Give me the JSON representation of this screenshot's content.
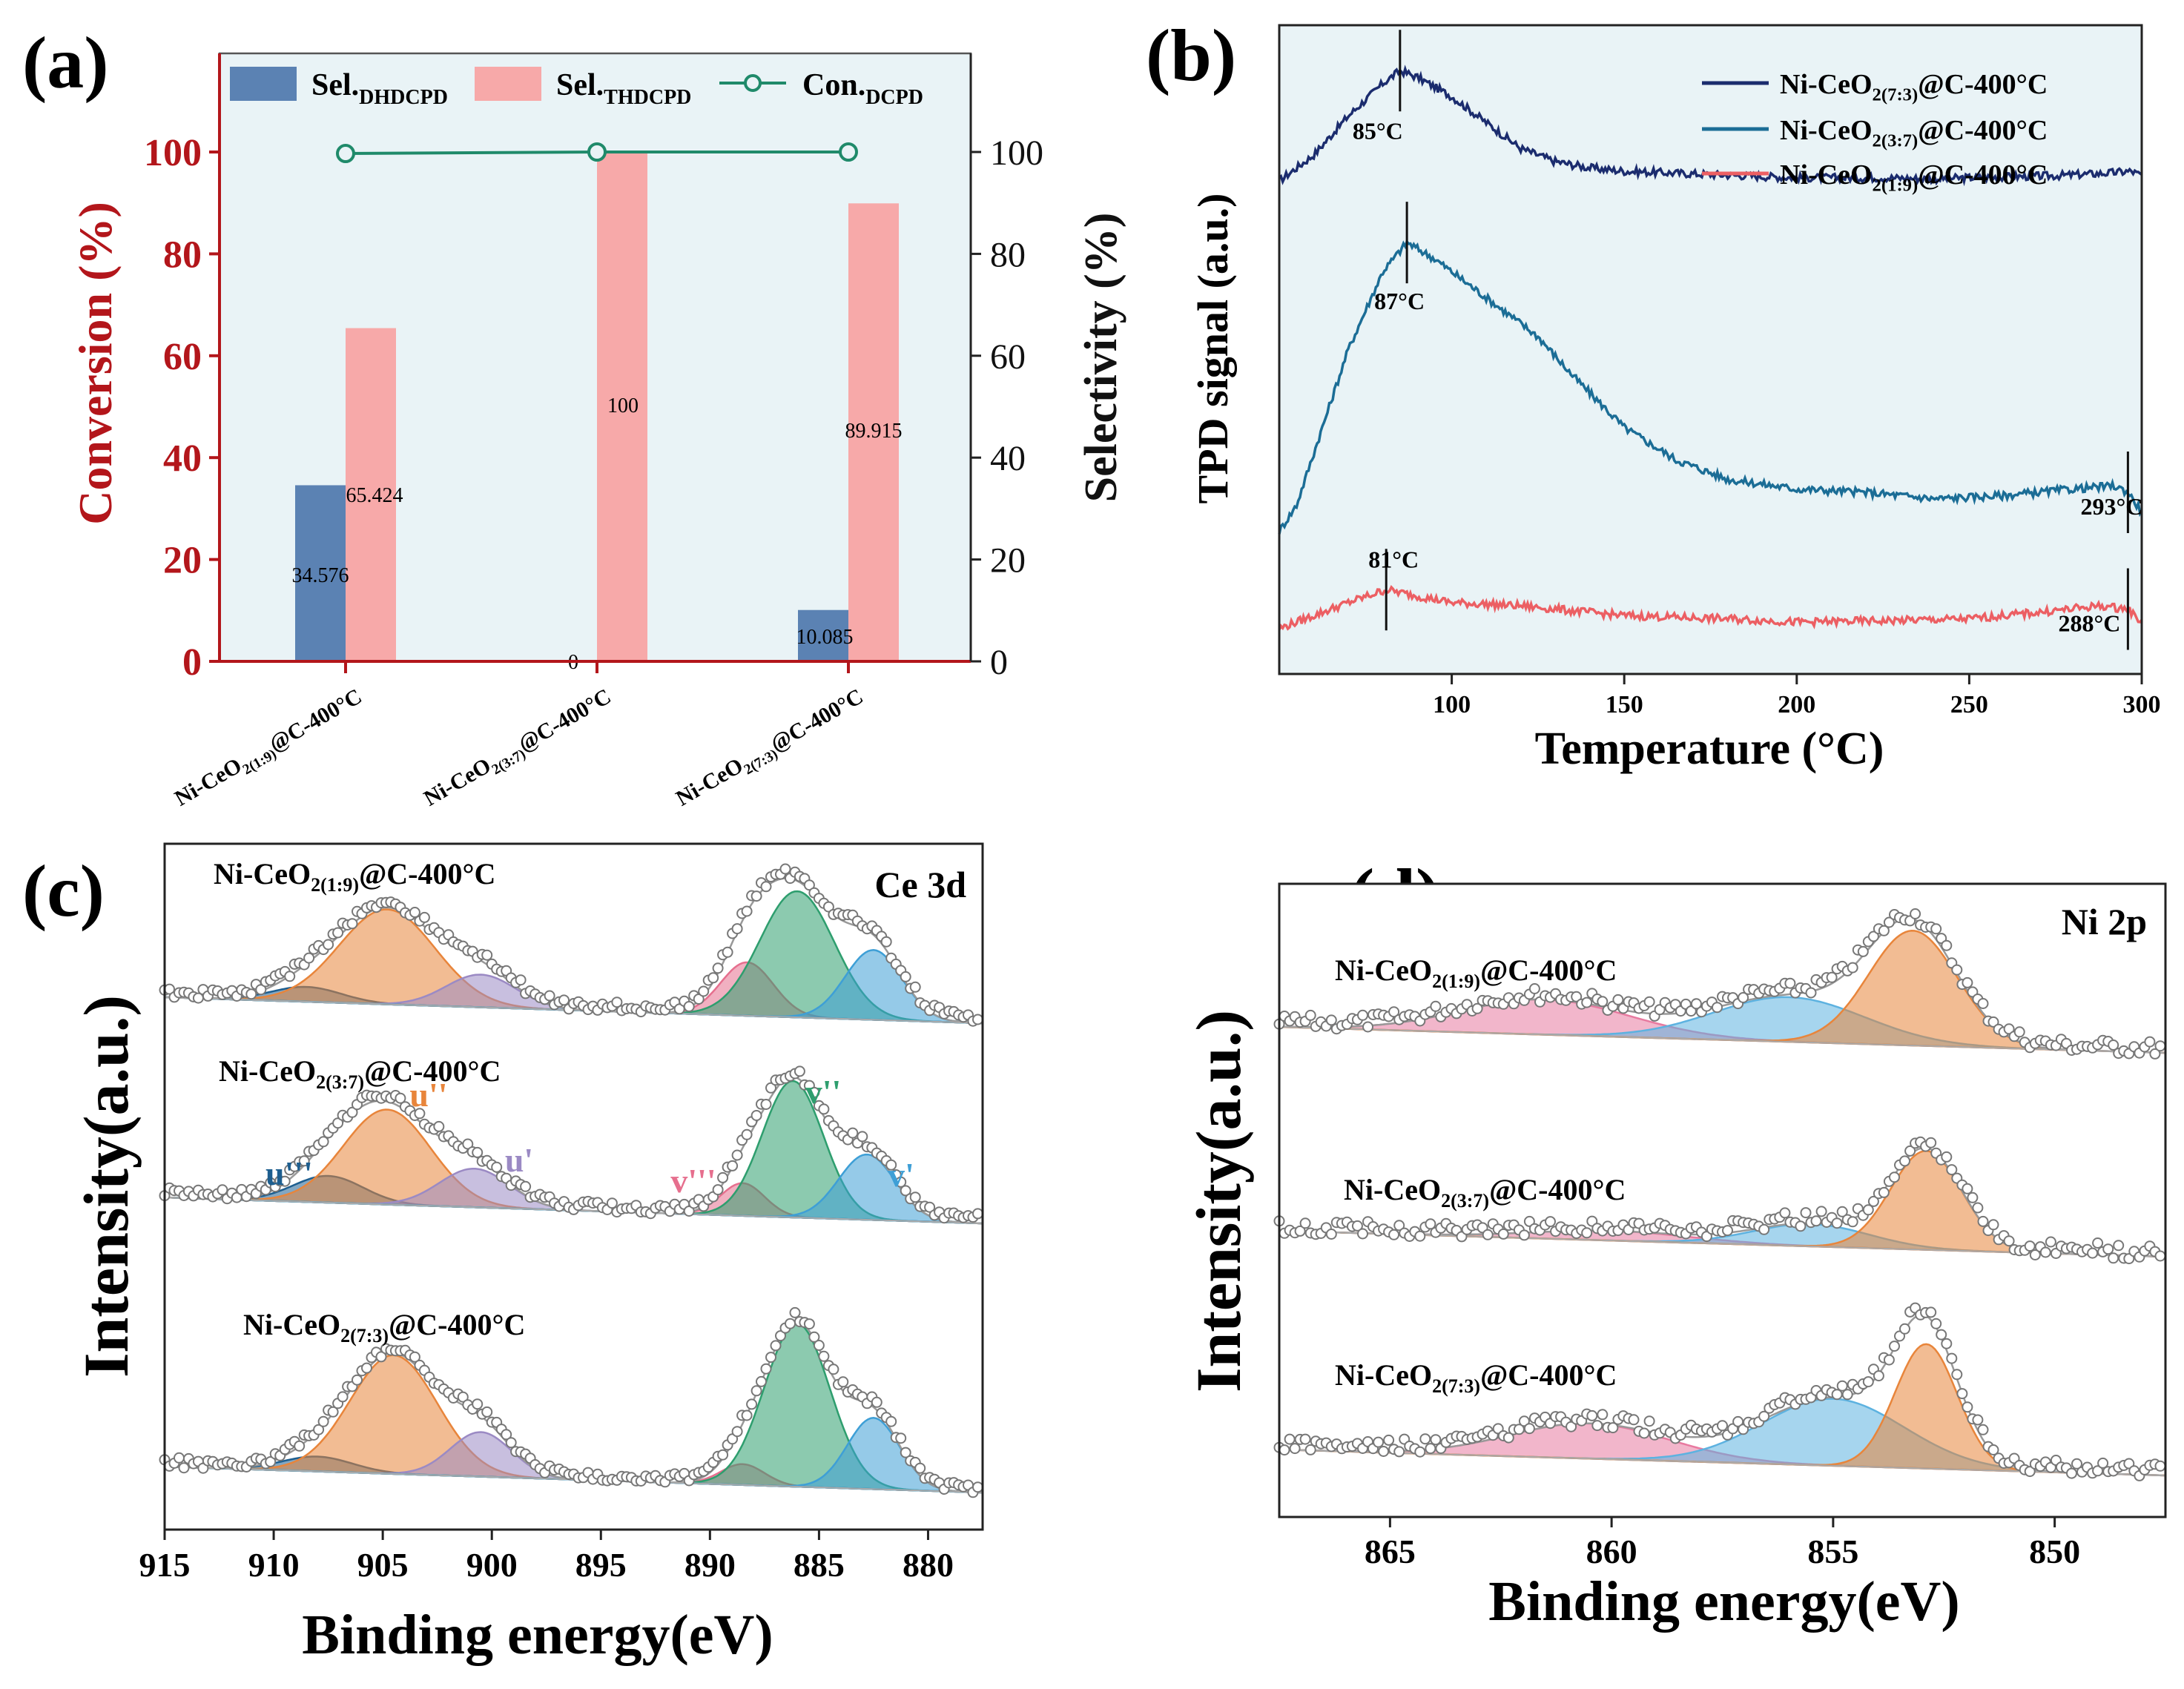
{
  "colors": {
    "panel_bg": "#e9f3f6",
    "dhdcpd": "#5b82b3",
    "thdcpd": "#f7a9a9",
    "conversion": "#1f8a6a",
    "axis_red": "#b3161b",
    "tpd_73": "#1b2c6e",
    "tpd_37": "#1b6d96",
    "tpd_19": "#ec5f63",
    "u3": "#1d5e8f",
    "u2": "#e8853b",
    "u1": "#9b8ac4",
    "v3": "#e66f8e",
    "v2": "#2e9e6e",
    "v1": "#3e9fd6",
    "ni_pink": "#e87aa0",
    "ni_blue": "#5db2e0",
    "ni_orange": "#e8853b"
  },
  "panels": {
    "a_label": "(a)",
    "b_label": "(b)",
    "c_label": "(c)",
    "d_label": "(d)"
  },
  "chart_data": [
    {
      "id": "a",
      "type": "bar",
      "categories": [
        {
          "main": "Ni-CeO",
          "sub": "2(1:9)",
          "tail": "@C-400°C"
        },
        {
          "main": "Ni-CeO",
          "sub": "2(3:7)",
          "tail": "@C-400°C"
        },
        {
          "main": "Ni-CeO",
          "sub": "2(7:3)",
          "tail": "@C-400°C"
        }
      ],
      "series": [
        {
          "name": "Sel.",
          "sub": "DHDCPD",
          "kind": "bar",
          "values": [
            34.576,
            0,
            10.085
          ],
          "labels": [
            "34.576",
            "0",
            "10.085"
          ]
        },
        {
          "name": "Sel.",
          "sub": "THDCPD",
          "kind": "bar",
          "values": [
            65.424,
            100,
            89.915
          ],
          "labels": [
            "65.424",
            "100",
            "89.915"
          ]
        },
        {
          "name": "Con.",
          "sub": "DCPD",
          "kind": "line",
          "values": [
            99.7,
            100,
            100
          ]
        }
      ],
      "ylabel_left": "Conversion (%)",
      "ylabel_right": "Selectivity (%)",
      "ylim": [
        0,
        100
      ],
      "yticks": [
        "0",
        "20",
        "40",
        "60",
        "80",
        "100"
      ]
    },
    {
      "id": "b",
      "type": "line",
      "xlabel": "Temperature (°C)",
      "ylabel": "TPD signal (a.u.)",
      "xlim": [
        50,
        300
      ],
      "xticks": [
        "100",
        "150",
        "200",
        "250",
        "300"
      ],
      "series": [
        {
          "name_main": "Ni-CeO",
          "name_sub": "2(7:3)",
          "name_tail": "@C-400°C",
          "x": [
            50,
            60,
            70,
            80,
            85,
            90,
            100,
            110,
            120,
            130,
            140,
            150,
            175,
            200,
            225,
            240,
            250,
            275,
            290,
            297,
            300
          ],
          "y": [
            0.76,
            0.8,
            0.86,
            0.91,
            0.93,
            0.92,
            0.89,
            0.85,
            0.81,
            0.79,
            0.78,
            0.775,
            0.77,
            0.765,
            0.765,
            0.763,
            0.765,
            0.768,
            0.772,
            0.775,
            0.768
          ]
        },
        {
          "name_main": "Ni-CeO",
          "name_sub": "2(3:7)",
          "name_tail": "@C-400°C",
          "x": [
            50,
            55,
            60,
            70,
            80,
            87,
            95,
            105,
            115,
            125,
            135,
            150,
            165,
            180,
            200,
            220,
            240,
            260,
            280,
            292,
            296,
            300
          ],
          "y": [
            0.22,
            0.26,
            0.34,
            0.5,
            0.62,
            0.665,
            0.64,
            0.6,
            0.56,
            0.52,
            0.46,
            0.38,
            0.33,
            0.3,
            0.285,
            0.28,
            0.27,
            0.275,
            0.285,
            0.29,
            0.28,
            0.25
          ]
        },
        {
          "name_main": "Ni-CeO",
          "name_sub": "2(1:9)",
          "name_tail": "@C-400°C",
          "x": [
            50,
            60,
            70,
            81,
            90,
            100,
            120,
            150,
            180,
            200,
            225,
            250,
            270,
            288,
            296,
            300
          ],
          "y": [
            0.07,
            0.09,
            0.11,
            0.13,
            0.12,
            0.11,
            0.105,
            0.09,
            0.085,
            0.08,
            0.082,
            0.085,
            0.095,
            0.105,
            0.1,
            0.08
          ]
        }
      ],
      "annotations": [
        {
          "text": "85°C",
          "series": 0,
          "x": 85
        },
        {
          "text": "87°C",
          "series": 1,
          "x": 87
        },
        {
          "text": "293°C",
          "series": 1,
          "x": 296
        },
        {
          "text": "81°C",
          "series": 2,
          "x": 81
        },
        {
          "text": "288°C",
          "series": 2,
          "x": 296
        }
      ]
    },
    {
      "id": "c",
      "type": "area",
      "title": "Ce 3d",
      "xlabel": "Binding energy(eV)",
      "ylabel": "Intensity(a.u.)",
      "xlim": [
        915,
        877.5
      ],
      "xticks": [
        "915",
        "910",
        "905",
        "900",
        "895",
        "890",
        "885",
        "880"
      ],
      "peak_labels": [
        "u'''",
        "u''",
        "u'",
        "v'''",
        "v''",
        "v'"
      ],
      "samples": [
        {
          "name_main": "Ni-CeO",
          "name_sub": "2(1:9)",
          "name_tail": "@C-400°C",
          "peaks": [
            {
              "id": "u3",
              "c": 908.5,
              "h": 0.1,
              "w": 1.6
            },
            {
              "id": "u2",
              "c": 904.8,
              "h": 0.64,
              "w": 2.2
            },
            {
              "id": "u1",
              "c": 900.5,
              "h": 0.22,
              "w": 1.6
            },
            {
              "id": "v3",
              "c": 888.3,
              "h": 0.36,
              "w": 1.2
            },
            {
              "id": "v2",
              "c": 886.0,
              "h": 0.85,
              "w": 1.7
            },
            {
              "id": "v1",
              "c": 882.5,
              "h": 0.47,
              "w": 1.3
            }
          ]
        },
        {
          "name_main": "Ni-CeO",
          "name_sub": "2(3:7)",
          "name_tail": "@C-400°C",
          "peaks": [
            {
              "id": "u3",
              "c": 907.5,
              "h": 0.18,
              "w": 1.6
            },
            {
              "id": "u2",
              "c": 904.8,
              "h": 0.64,
              "w": 2.0
            },
            {
              "id": "u1",
              "c": 900.8,
              "h": 0.26,
              "w": 1.6
            },
            {
              "id": "v3",
              "c": 888.5,
              "h": 0.22,
              "w": 1.0
            },
            {
              "id": "v2",
              "c": 886.2,
              "h": 0.92,
              "w": 1.4
            },
            {
              "id": "v1",
              "c": 882.8,
              "h": 0.44,
              "w": 1.3
            }
          ]
        },
        {
          "name_main": "Ni-CeO",
          "name_sub": "2(7:3)",
          "name_tail": "@C-400°C",
          "peaks": [
            {
              "id": "u3",
              "c": 908.0,
              "h": 0.1,
              "w": 1.6
            },
            {
              "id": "u2",
              "c": 904.5,
              "h": 0.8,
              "w": 2.0
            },
            {
              "id": "u1",
              "c": 900.5,
              "h": 0.3,
              "w": 1.4
            },
            {
              "id": "v3",
              "c": 888.5,
              "h": 0.14,
              "w": 1.0
            },
            {
              "id": "v2",
              "c": 886.0,
              "h": 1.1,
              "w": 1.5
            },
            {
              "id": "v1",
              "c": 882.5,
              "h": 0.48,
              "w": 1.2
            }
          ]
        }
      ]
    },
    {
      "id": "d",
      "type": "area",
      "title": "Ni 2p",
      "xlabel": "Binding energy(eV)",
      "ylabel": "Intensity(a.u.)",
      "xlim": [
        867.5,
        847.5
      ],
      "xticks": [
        "865",
        "860",
        "855",
        "850"
      ],
      "samples": [
        {
          "name_main": "Ni-CeO",
          "name_sub": "2(1:9)",
          "name_tail": "@C-400°C",
          "peaks": [
            {
              "id": "pink",
              "c": 861.5,
              "h": 0.22,
              "w": 1.9
            },
            {
              "id": "blue",
              "c": 856.0,
              "h": 0.28,
              "w": 1.7
            },
            {
              "id": "orange",
              "c": 853.2,
              "h": 0.72,
              "w": 1.0
            }
          ]
        },
        {
          "name_main": "Ni-CeO",
          "name_sub": "2(3:7)",
          "name_tail": "@C-400°C",
          "peaks": [
            {
              "id": "pink",
              "c": 860.0,
              "h": 0.06,
              "w": 1.8
            },
            {
              "id": "blue",
              "c": 855.5,
              "h": 0.14,
              "w": 1.3
            },
            {
              "id": "orange",
              "c": 852.9,
              "h": 0.62,
              "w": 0.8
            }
          ]
        },
        {
          "name_main": "Ni-CeO",
          "name_sub": "2(7:3)",
          "name_tail": "@C-400°C",
          "peaks": [
            {
              "id": "pink",
              "c": 860.5,
              "h": 0.22,
              "w": 1.8
            },
            {
              "id": "blue",
              "c": 855.0,
              "h": 0.42,
              "w": 1.6
            },
            {
              "id": "orange",
              "c": 852.9,
              "h": 0.78,
              "w": 0.7
            }
          ]
        }
      ]
    }
  ]
}
